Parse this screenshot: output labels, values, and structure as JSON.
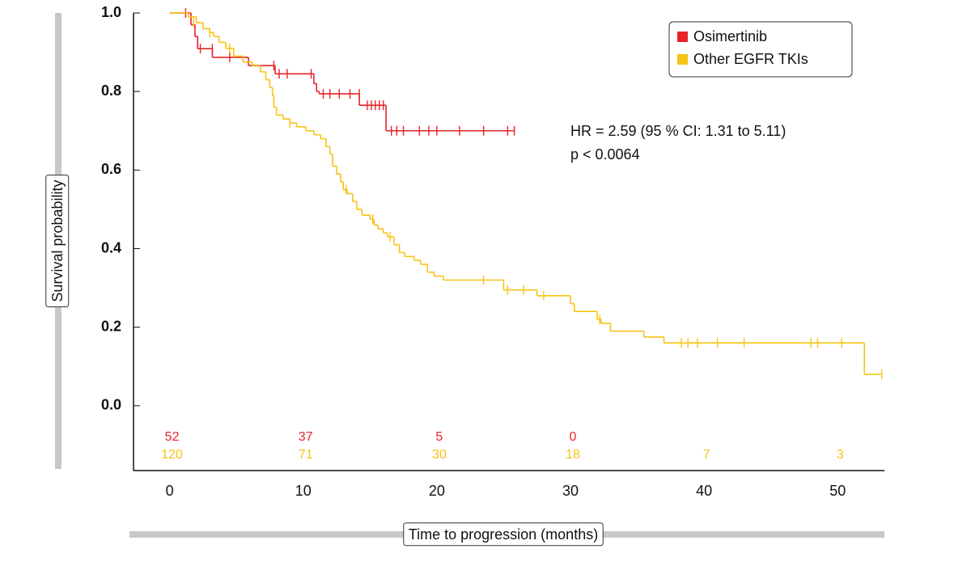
{
  "chart_data": {
    "type": "kaplan-meier",
    "xlabel": "Time to progression (months)",
    "ylabel": "Survival probability",
    "xlim": [
      -2.7,
      53.5
    ],
    "ylim": [
      -0.165,
      1.0
    ],
    "xticks": [
      0,
      10,
      20,
      30,
      40,
      50
    ],
    "yticks": [
      {
        "value": 0,
        "label": "0.0"
      },
      {
        "value": 0.2,
        "label": "0.2"
      },
      {
        "value": 0.4,
        "label": "0.4"
      },
      {
        "value": 0.6,
        "label": "0.6"
      },
      {
        "value": 0.8,
        "label": "0.8"
      },
      {
        "value": 1,
        "label": "1.0"
      }
    ],
    "legend": "upper right",
    "annotations": [
      "HR = 2.59 (95 % CI: 1.31 to 5.11)",
      "p < 0.0064"
    ],
    "series": [
      {
        "name": "Osimertinib",
        "color": "#e8232a",
        "x": [
          0,
          1.6,
          1.9,
          2.1,
          3.2,
          5.9,
          7.9,
          10.8,
          11.0,
          11.2,
          14.2,
          16.2
        ],
        "values": [
          1.0,
          0.97,
          0.94,
          0.909,
          0.887,
          0.866,
          0.845,
          0.82,
          0.8,
          0.794,
          0.765,
          0.7
        ],
        "censored_x": [
          1.2,
          2.3,
          3.2,
          4.5,
          7.8,
          8.2,
          8.8,
          10.6,
          11.5,
          12.0,
          12.7,
          13.5,
          14.2,
          14.8,
          15.1,
          15.4,
          15.7,
          16.0,
          16.6,
          17.0,
          17.5,
          18.7,
          19.4,
          20.0,
          21.7,
          23.5,
          25.3,
          25.8
        ],
        "censored_values": [
          1.0,
          0.909,
          0.909,
          0.887,
          0.866,
          0.845,
          0.845,
          0.845,
          0.794,
          0.794,
          0.794,
          0.794,
          0.794,
          0.765,
          0.765,
          0.765,
          0.765,
          0.765,
          0.7,
          0.7,
          0.7,
          0.7,
          0.7,
          0.7,
          0.7,
          0.7,
          0.7,
          0.7
        ]
      },
      {
        "name": "Other EGFR TKIs",
        "color": "#f7c315",
        "x": [
          0,
          1.4,
          2.0,
          2.5,
          3.0,
          3.3,
          3.7,
          4.2,
          4.8,
          5.5,
          6.2,
          6.8,
          7.2,
          7.5,
          7.7,
          7.8,
          8.0,
          8.5,
          9.0,
          9.5,
          10.2,
          10.8,
          11.3,
          11.7,
          12.0,
          12.2,
          12.5,
          12.8,
          13.0,
          13.3,
          13.7,
          14.0,
          14.4,
          15.0,
          15.3,
          15.6,
          16.0,
          16.3,
          16.8,
          17.2,
          17.6,
          18.3,
          18.8,
          19.3,
          19.8,
          20.5,
          25.0,
          27.5,
          30.0,
          30.3,
          32.0,
          32.3,
          33.0,
          35.5,
          37.0,
          52.0
        ],
        "values": [
          1.0,
          0.99,
          0.975,
          0.96,
          0.95,
          0.94,
          0.925,
          0.91,
          0.89,
          0.875,
          0.865,
          0.85,
          0.83,
          0.81,
          0.79,
          0.76,
          0.74,
          0.73,
          0.72,
          0.71,
          0.7,
          0.69,
          0.68,
          0.66,
          0.64,
          0.61,
          0.59,
          0.57,
          0.55,
          0.54,
          0.52,
          0.5,
          0.485,
          0.475,
          0.46,
          0.45,
          0.44,
          0.43,
          0.41,
          0.39,
          0.38,
          0.37,
          0.36,
          0.34,
          0.33,
          0.32,
          0.295,
          0.28,
          0.26,
          0.24,
          0.22,
          0.21,
          0.19,
          0.175,
          0.16,
          0.08
        ],
        "censored_x": [
          1.8,
          3.0,
          4.5,
          9.0,
          13.2,
          15.2,
          16.5,
          23.5,
          25.3,
          26.5,
          28.0,
          32.2,
          38.3,
          38.8,
          39.5,
          41.0,
          43.0,
          48.0,
          48.5,
          50.3,
          53.3
        ],
        "censored_values": [
          0.975,
          0.95,
          0.91,
          0.72,
          0.55,
          0.475,
          0.43,
          0.32,
          0.295,
          0.295,
          0.28,
          0.22,
          0.16,
          0.16,
          0.16,
          0.16,
          0.16,
          0.16,
          0.16,
          0.16,
          0.08
        ]
      }
    ],
    "numbers_at_risk": {
      "times": [
        0,
        10,
        20,
        30,
        40,
        50
      ],
      "rows": [
        [
          52,
          37,
          5,
          0
        ],
        [
          120,
          71,
          30,
          18,
          7,
          3
        ]
      ]
    }
  }
}
